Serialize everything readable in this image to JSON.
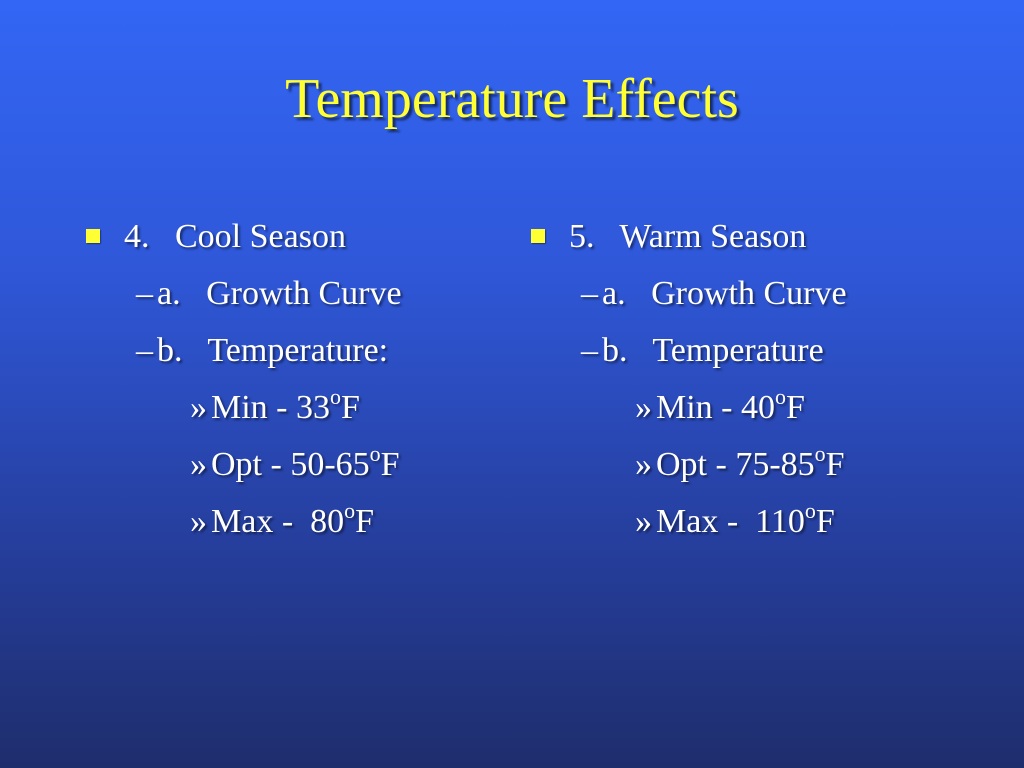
{
  "slide": {
    "title": "Temperature Effects",
    "left": {
      "heading": "4.   Cool Season",
      "sub_a": "a.   Growth Curve",
      "sub_b": "b.   Temperature:",
      "min_prefix": "Min - 33",
      "opt_prefix": "Opt - 50-65",
      "max_prefix": "Max -  80"
    },
    "right": {
      "heading": "5.   Warm Season",
      "sub_a": "a.   Growth Curve",
      "sub_b": "b.   Temperature",
      "min_prefix": "Min - 40",
      "opt_prefix": "Opt - 75-85",
      "max_prefix": "Max -  110"
    },
    "degree_symbol": "o",
    "unit": "F",
    "dash_symbol": "–",
    "sub_bullet_symbol": "»"
  },
  "colors": {
    "title": "#ffff33",
    "bullet": "#ffff33",
    "text": "#ffffff",
    "background_top": "#3366f5",
    "background_bottom": "#1e2d6c"
  }
}
